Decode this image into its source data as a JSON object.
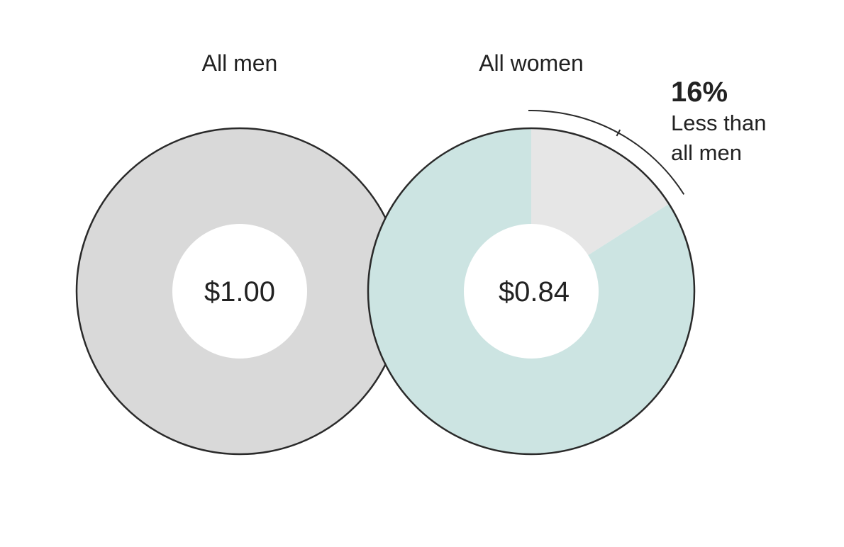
{
  "chart_data": {
    "type": "pie",
    "charts": [
      {
        "title": "All men",
        "center_label": "$1.00",
        "value": 1.0,
        "slices": [
          {
            "value": 1.0,
            "color": "#d9d9d9"
          }
        ]
      },
      {
        "title": "All women",
        "center_label": "$0.84",
        "value": 0.84,
        "slices": [
          {
            "value": 0.84,
            "color": "#cce4e2"
          },
          {
            "value": 0.16,
            "color": "#e6e6e6"
          }
        ]
      }
    ],
    "annotation": {
      "value_label": "16%",
      "text_line1": "Less than",
      "text_line2": "all men"
    },
    "colors": {
      "outline": "#2a2a2a",
      "text": "#222222",
      "hole": "#ffffff"
    }
  }
}
